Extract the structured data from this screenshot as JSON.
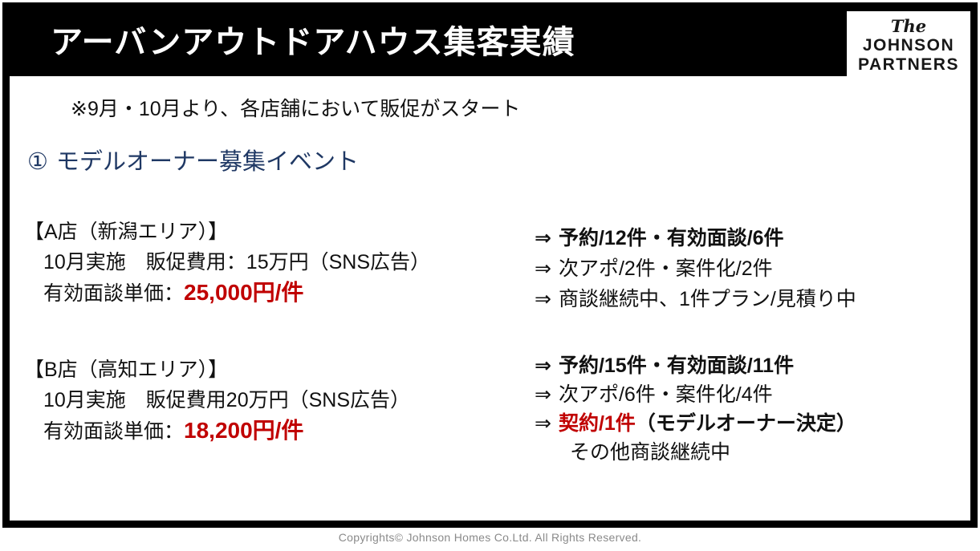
{
  "page": {
    "title": "アーバンアウトドアハウス集客実績",
    "note": "※9月・10月より、各店舗において販促がスタート",
    "section": {
      "number": "①",
      "label": "モデルオーナー募集イベント"
    }
  },
  "logo": {
    "the": "The",
    "johnson": "JOHNSON",
    "partners": "PARTNERS"
  },
  "stores": {
    "a": {
      "name": "【A店（新潟エリア）】",
      "detail": "10月実施　販促費用：15万円（SNS広告）",
      "unit_label": "有効面談単価：",
      "unit_value": "25,000円/件",
      "results": {
        "line1": {
          "arrow": "⇒",
          "text": "予約/12件・有効面談/6件"
        },
        "line2": {
          "arrow": "⇒",
          "text": "次アポ/2件・案件化/2件"
        },
        "line3": {
          "arrow": "⇒",
          "text": "商談継続中、1件プラン/見積り中"
        }
      }
    },
    "b": {
      "name": "【B店（高知エリア）】",
      "detail": "10月実施　販促費用20万円（SNS広告）",
      "unit_label": "有効面談単価：",
      "unit_value": "18,200円/件",
      "results": {
        "line1": {
          "arrow": "⇒",
          "text": "予約/15件・有効面談/11件"
        },
        "line2": {
          "arrow": "⇒",
          "text": "次アポ/6件・案件化/4件"
        },
        "line3": {
          "arrow": "⇒",
          "highlight": "契約/1件",
          "text": "（モデルオーナー決定）"
        },
        "line4": {
          "text": "その他商談継続中"
        }
      }
    }
  },
  "footer": {
    "copyright": "Copyrights© Johnson Homes Co.Ltd. All Rights Reserved."
  },
  "colors": {
    "accent_red": "#C00000",
    "heading_navy": "#1F3864",
    "banner_black": "#000000",
    "copyright_gray": "#8a8a8a"
  }
}
